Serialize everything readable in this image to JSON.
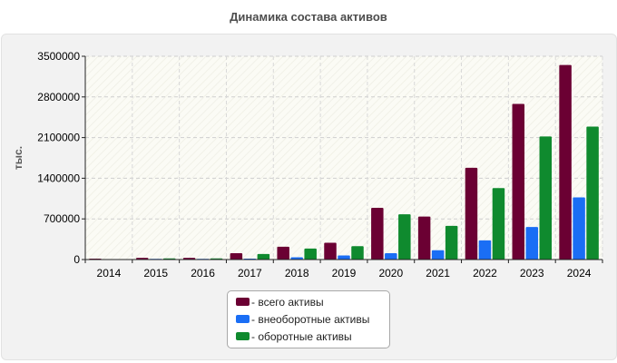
{
  "chart_data": {
    "type": "bar",
    "title": "Динамика состава активов",
    "xlabel": "",
    "ylabel": "тыс.",
    "ylim": [
      0,
      3500000
    ],
    "yticks": [
      "0",
      "700000",
      "1400000",
      "2100000",
      "2800000",
      "3500000"
    ],
    "ytick_values": [
      0,
      700000,
      1400000,
      2100000,
      2800000,
      3500000
    ],
    "grid": true,
    "legend_position": "bottom",
    "categories": [
      "2014",
      "2015",
      "2016",
      "2017",
      "2018",
      "2019",
      "2020",
      "2021",
      "2022",
      "2023",
      "2024"
    ],
    "series": [
      {
        "name": "всего активы",
        "legend_label": "- всего активы",
        "color": "#6b0033",
        "values": [
          15000,
          30000,
          30000,
          110000,
          220000,
          290000,
          890000,
          740000,
          1580000,
          2680000,
          3350000
        ]
      },
      {
        "name": "внеоборотные активы",
        "legend_label": "- внеоборотные активы",
        "color": "#1a6ef5",
        "values": [
          8000,
          12000,
          12000,
          15000,
          40000,
          70000,
          110000,
          160000,
          330000,
          560000,
          1070000
        ]
      },
      {
        "name": "оборотные активы",
        "legend_label": "- оборотные активы",
        "color": "#0f8a2e",
        "values": [
          8000,
          20000,
          20000,
          95000,
          190000,
          230000,
          780000,
          580000,
          1230000,
          2120000,
          2290000
        ]
      }
    ]
  }
}
